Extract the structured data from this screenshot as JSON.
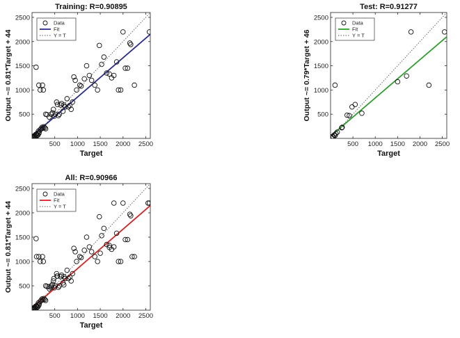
{
  "chart_data": [
    {
      "type": "scatter",
      "title": "Training: R=0.90895",
      "xlabel": "Target",
      "ylabel": "Output ~= 0.81*Target + 44",
      "xlim": [
        0,
        2600
      ],
      "ylim": [
        0,
        2600
      ],
      "xticks": [
        500,
        1000,
        1500,
        2000,
        2500
      ],
      "yticks": [
        500,
        1000,
        1500,
        2000,
        2500
      ],
      "fit": {
        "slope": 0.81,
        "intercept": 44,
        "color": "#2b2b8f"
      },
      "legend": {
        "position": "top-left",
        "entries": [
          "Data",
          "Fit",
          "Y = T"
        ]
      },
      "points": [
        [
          10,
          10
        ],
        [
          20,
          30
        ],
        [
          30,
          15
        ],
        [
          40,
          50
        ],
        [
          50,
          25
        ],
        [
          60,
          60
        ],
        [
          70,
          40
        ],
        [
          80,
          80
        ],
        [
          90,
          30
        ],
        [
          100,
          90
        ],
        [
          110,
          60
        ],
        [
          120,
          110
        ],
        [
          130,
          70
        ],
        [
          140,
          150
        ],
        [
          150,
          100
        ],
        [
          160,
          130
        ],
        [
          180,
          180
        ],
        [
          200,
          200
        ],
        [
          220,
          230
        ],
        [
          240,
          210
        ],
        [
          260,
          240
        ],
        [
          280,
          220
        ],
        [
          300,
          200
        ],
        [
          90,
          1470
        ],
        [
          150,
          1100
        ],
        [
          180,
          1000
        ],
        [
          230,
          1100
        ],
        [
          250,
          1000
        ],
        [
          300,
          500
        ],
        [
          330,
          490
        ],
        [
          380,
          440
        ],
        [
          420,
          500
        ],
        [
          450,
          530
        ],
        [
          470,
          600
        ],
        [
          490,
          460
        ],
        [
          510,
          500
        ],
        [
          540,
          750
        ],
        [
          560,
          700
        ],
        [
          580,
          470
        ],
        [
          600,
          500
        ],
        [
          630,
          690
        ],
        [
          650,
          720
        ],
        [
          680,
          560
        ],
        [
          700,
          690
        ],
        [
          730,
          650
        ],
        [
          770,
          820
        ],
        [
          800,
          650
        ],
        [
          830,
          680
        ],
        [
          860,
          600
        ],
        [
          890,
          750
        ],
        [
          920,
          1270
        ],
        [
          950,
          1200
        ],
        [
          980,
          1000
        ],
        [
          1050,
          1100
        ],
        [
          1080,
          1080
        ],
        [
          1150,
          1230
        ],
        [
          1200,
          1500
        ],
        [
          1260,
          1300
        ],
        [
          1310,
          1200
        ],
        [
          1380,
          1100
        ],
        [
          1440,
          1000
        ],
        [
          1480,
          1920
        ],
        [
          1530,
          1530
        ],
        [
          1580,
          1680
        ],
        [
          1640,
          1350
        ],
        [
          1700,
          1330
        ],
        [
          1750,
          1250
        ],
        [
          1800,
          1300
        ],
        [
          1860,
          1580
        ],
        [
          1900,
          1000
        ],
        [
          1950,
          1000
        ],
        [
          2000,
          2200
        ],
        [
          2050,
          1450
        ],
        [
          2100,
          1450
        ],
        [
          2150,
          1970
        ],
        [
          2170,
          1940
        ],
        [
          2250,
          1100
        ],
        [
          2580,
          2200
        ]
      ]
    },
    {
      "type": "scatter",
      "title": "Test: R=0.91277",
      "xlabel": "Target",
      "ylabel": "Output ~= 0.79*Target + 46",
      "xlim": [
        0,
        2600
      ],
      "ylim": [
        0,
        2600
      ],
      "xticks": [
        500,
        1000,
        1500,
        2000,
        2500
      ],
      "yticks": [
        500,
        1000,
        1500,
        2000,
        2500
      ],
      "fit": {
        "slope": 0.79,
        "intercept": 46,
        "color": "#2e9e2e"
      },
      "legend": {
        "position": "top-left",
        "entries": [
          "Data",
          "Fit",
          "Y = T"
        ]
      },
      "points": [
        [
          20,
          20
        ],
        [
          40,
          40
        ],
        [
          60,
          30
        ],
        [
          80,
          70
        ],
        [
          100,
          60
        ],
        [
          120,
          100
        ],
        [
          150,
          130
        ],
        [
          100,
          1100
        ],
        [
          250,
          220
        ],
        [
          260,
          230
        ],
        [
          370,
          480
        ],
        [
          420,
          470
        ],
        [
          480,
          650
        ],
        [
          550,
          700
        ],
        [
          700,
          520
        ],
        [
          1500,
          1170
        ],
        [
          1700,
          1290
        ],
        [
          1800,
          2200
        ],
        [
          2200,
          1100
        ],
        [
          2550,
          2200
        ]
      ]
    },
    {
      "type": "scatter",
      "title": "All: R=0.90966",
      "xlabel": "Target",
      "ylabel": "Output ~= 0.81*Target + 44",
      "xlim": [
        0,
        2600
      ],
      "ylim": [
        0,
        2600
      ],
      "xticks": [
        500,
        1000,
        1500,
        2000,
        2500
      ],
      "yticks": [
        500,
        1000,
        1500,
        2000,
        2500
      ],
      "fit": {
        "slope": 0.81,
        "intercept": 44,
        "color": "#d92020"
      },
      "legend": {
        "position": "top-left",
        "entries": [
          "Data",
          "Fit",
          "Y = T"
        ]
      },
      "points": [
        [
          10,
          10
        ],
        [
          20,
          30
        ],
        [
          30,
          15
        ],
        [
          40,
          50
        ],
        [
          50,
          25
        ],
        [
          60,
          60
        ],
        [
          70,
          40
        ],
        [
          80,
          80
        ],
        [
          90,
          30
        ],
        [
          100,
          90
        ],
        [
          110,
          60
        ],
        [
          120,
          110
        ],
        [
          130,
          70
        ],
        [
          140,
          150
        ],
        [
          150,
          100
        ],
        [
          160,
          130
        ],
        [
          180,
          180
        ],
        [
          200,
          200
        ],
        [
          220,
          230
        ],
        [
          240,
          210
        ],
        [
          260,
          240
        ],
        [
          280,
          220
        ],
        [
          300,
          200
        ],
        [
          90,
          1470
        ],
        [
          150,
          1100
        ],
        [
          180,
          1000
        ],
        [
          230,
          1100
        ],
        [
          250,
          1000
        ],
        [
          300,
          500
        ],
        [
          330,
          490
        ],
        [
          380,
          440
        ],
        [
          420,
          500
        ],
        [
          450,
          530
        ],
        [
          470,
          600
        ],
        [
          490,
          460
        ],
        [
          510,
          500
        ],
        [
          540,
          750
        ],
        [
          560,
          700
        ],
        [
          580,
          470
        ],
        [
          600,
          500
        ],
        [
          630,
          690
        ],
        [
          650,
          720
        ],
        [
          680,
          560
        ],
        [
          700,
          690
        ],
        [
          730,
          650
        ],
        [
          770,
          820
        ],
        [
          800,
          650
        ],
        [
          830,
          680
        ],
        [
          860,
          600
        ],
        [
          890,
          750
        ],
        [
          920,
          1270
        ],
        [
          950,
          1200
        ],
        [
          980,
          1000
        ],
        [
          1050,
          1100
        ],
        [
          1080,
          1080
        ],
        [
          1150,
          1230
        ],
        [
          1200,
          1500
        ],
        [
          1260,
          1300
        ],
        [
          1310,
          1200
        ],
        [
          1380,
          1100
        ],
        [
          1440,
          1000
        ],
        [
          1480,
          1920
        ],
        [
          1530,
          1530
        ],
        [
          1580,
          1680
        ],
        [
          1640,
          1350
        ],
        [
          1700,
          1330
        ],
        [
          1750,
          1250
        ],
        [
          1800,
          1300
        ],
        [
          1860,
          1580
        ],
        [
          1900,
          1000
        ],
        [
          1950,
          1000
        ],
        [
          2000,
          2200
        ],
        [
          2050,
          1450
        ],
        [
          2100,
          1450
        ],
        [
          2150,
          1970
        ],
        [
          2170,
          1940
        ],
        [
          2250,
          1100
        ],
        [
          2580,
          2200
        ],
        [
          370,
          480
        ],
        [
          420,
          470
        ],
        [
          480,
          650
        ],
        [
          550,
          700
        ],
        [
          700,
          520
        ],
        [
          1500,
          1170
        ],
        [
          1700,
          1290
        ],
        [
          1800,
          2200
        ],
        [
          2200,
          1100
        ],
        [
          2550,
          2200
        ],
        [
          100,
          1100
        ]
      ]
    }
  ]
}
